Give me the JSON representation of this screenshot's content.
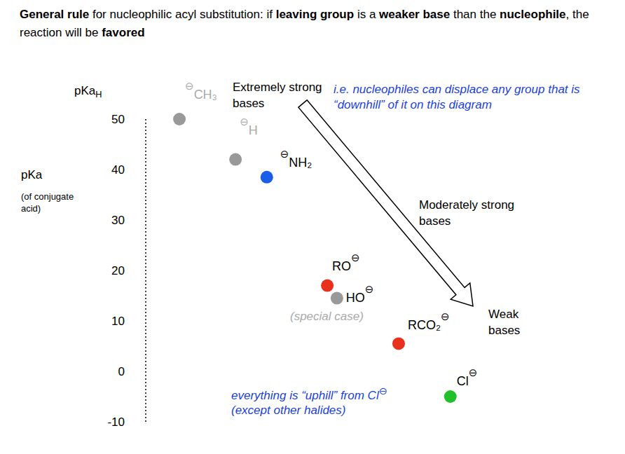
{
  "chart_data": {
    "type": "scatter",
    "title": [
      "General rule",
      " for nucleophilic acyl substitution: if ",
      "leaving group",
      " is a ",
      "weaker base",
      " than the ",
      "nucleophile",
      ", the reaction will be ",
      "favored"
    ],
    "y_label_top": {
      "text": "pKa",
      "subscript": "H"
    },
    "y_axis_title": "pKa",
    "y_axis_note": "(of conjugate acid)",
    "xlim": [
      0,
      100
    ],
    "ylim": [
      -10,
      50
    ],
    "yticks": [
      -10,
      0,
      10,
      20,
      30,
      40,
      50
    ],
    "tick_labels": "y",
    "grid": false,
    "points": [
      {
        "label": "⊖CH₃",
        "x": 8.4,
        "y": 50,
        "color": "#999999",
        "label_color": "#aaaaaa"
      },
      {
        "label": "⊖H",
        "x": 22.4,
        "y": 42,
        "color": "#999999",
        "label_color": "#aaaaaa"
      },
      {
        "label": "⊖NH₂",
        "x": 30.2,
        "y": 38.5,
        "color": "#1a5ee8",
        "label_color": "#000000"
      },
      {
        "label": "RO⊖",
        "x": 45.3,
        "y": 17,
        "color": "#e8301c",
        "label_color": "#000000"
      },
      {
        "label": "HO⊖",
        "x": 47.7,
        "y": 14.5,
        "color": "#999999",
        "label_color": "#000000"
      },
      {
        "label": "RCO₂⊖",
        "x": 63.1,
        "y": 5.5,
        "color": "#e8301c",
        "label_color": "#000000"
      },
      {
        "label": "Cl⊖",
        "x": 76,
        "y": -5,
        "color": "#1fc02a",
        "label_color": "#000000"
      }
    ],
    "annotations": {
      "extremely_strong_bases": "Extremely strong bases",
      "moderately_strong_bases": "Moderately strong bases",
      "weak_bases": "Weak bases",
      "rule_note": "i.e. nucleophiles can displace any group that is “downhill” of it on this diagram",
      "special_case": "(special case)",
      "chloride_note": [
        "everything is “uphill” from Cl⊖",
        "(except other halides)"
      ]
    }
  }
}
